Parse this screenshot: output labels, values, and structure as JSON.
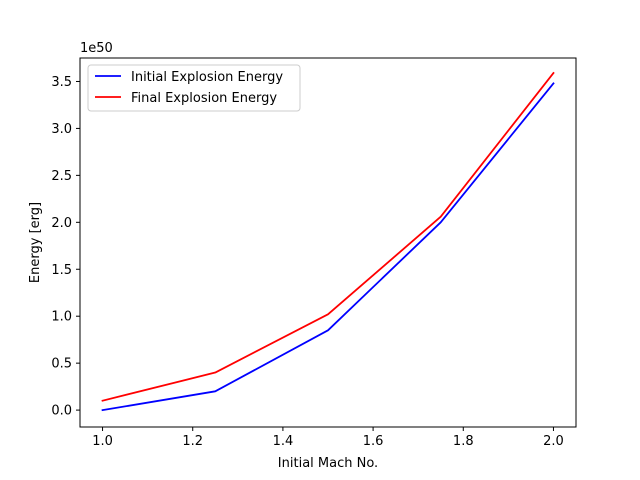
{
  "chart_data": {
    "type": "line",
    "title": "",
    "xlabel": "Initial Mach No.",
    "ylabel": "Energy [erg]",
    "y_offset_text": "1e50",
    "xlim": [
      0.95,
      2.05
    ],
    "ylim": [
      -0.18,
      3.75
    ],
    "x_ticks": [
      1.0,
      1.2,
      1.4,
      1.6,
      1.8,
      2.0
    ],
    "x_tick_labels": [
      "1.0",
      "1.2",
      "1.4",
      "1.6",
      "1.8",
      "2.0"
    ],
    "y_ticks": [
      0.0,
      0.5,
      1.0,
      1.5,
      2.0,
      2.5,
      3.0,
      3.5
    ],
    "y_tick_labels": [
      "0.0",
      "0.5",
      "1.0",
      "1.5",
      "2.0",
      "2.5",
      "3.0",
      "3.5"
    ],
    "grid": false,
    "legend_position": "top-left",
    "series": [
      {
        "name": "Initial Explosion Energy",
        "color": "#0000ff",
        "x": [
          1.0,
          1.25,
          1.5,
          1.75,
          2.0
        ],
        "y": [
          0.0,
          0.2,
          0.85,
          2.0,
          3.48
        ]
      },
      {
        "name": "Final Explosion Energy",
        "color": "#ff0000",
        "x": [
          1.0,
          1.25,
          1.5,
          1.75,
          2.0
        ],
        "y": [
          0.1,
          0.4,
          1.02,
          2.06,
          3.59
        ]
      }
    ]
  }
}
